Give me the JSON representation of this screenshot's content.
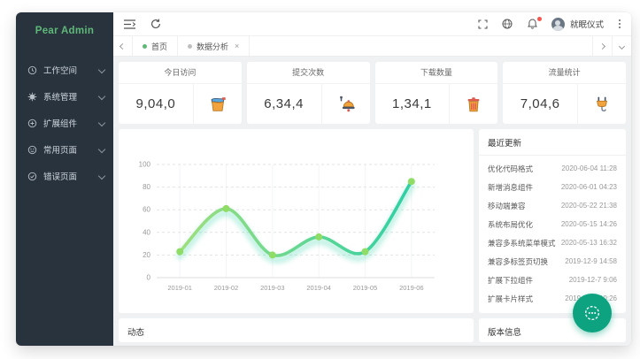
{
  "app": {
    "logo_text": "Pear Admin"
  },
  "sidebar": {
    "items": [
      {
        "label": "工作空间",
        "icon": "workspace-icon"
      },
      {
        "label": "系统管理",
        "icon": "system-icon"
      },
      {
        "label": "扩展组件",
        "icon": "extension-icon"
      },
      {
        "label": "常用页面",
        "icon": "pages-icon"
      },
      {
        "label": "错误页面",
        "icon": "error-icon"
      }
    ]
  },
  "topbar": {
    "username": "就眠仪式"
  },
  "tabbar": {
    "tabs": [
      {
        "label": "首页",
        "active": true,
        "closable": false
      },
      {
        "label": "数据分析",
        "active": false,
        "closable": true,
        "close_glyph": "×"
      }
    ]
  },
  "stats": {
    "cards": [
      {
        "title": "今日访问",
        "value": "9,04,0",
        "icon": "paint-bucket-icon"
      },
      {
        "title": "提交次数",
        "value": "6,34,4",
        "icon": "bell-icon"
      },
      {
        "title": "下载数量",
        "value": "1,34,1",
        "icon": "trash-icon"
      },
      {
        "title": "流量统计",
        "value": "7,04,6",
        "icon": "plug-icon"
      }
    ]
  },
  "updates": {
    "title": "最近更新",
    "items": [
      {
        "label": "优化代码格式",
        "date": "2020-06-04 11:28"
      },
      {
        "label": "新增消息组件",
        "date": "2020-06-01 04:23"
      },
      {
        "label": "移动端兼容",
        "date": "2020-05-22 21:38"
      },
      {
        "label": "系统布局优化",
        "date": "2020-05-15 14:26"
      },
      {
        "label": "兼容多系统菜单模式",
        "date": "2020-05-13 16:32"
      },
      {
        "label": "兼容多标签页切换",
        "date": "2019-12-9 14:58"
      },
      {
        "label": "扩展下拉组件",
        "date": "2019-12-7 9:06"
      },
      {
        "label": "扩展卡片样式",
        "date": "2019-12-1 10:26"
      }
    ]
  },
  "panels": {
    "activity_title": "动态",
    "version_title": "版本信息"
  },
  "chart_data": {
    "type": "line",
    "categories": [
      "2019-01",
      "2019-02",
      "2019-03",
      "2019-04",
      "2019-05",
      "2019-06"
    ],
    "values": [
      23,
      61,
      20,
      36,
      23,
      85
    ],
    "title": "",
    "xlabel": "",
    "ylabel": "",
    "ylim": [
      0,
      100
    ],
    "y_ticks": [
      0,
      20,
      40,
      60,
      80,
      100
    ],
    "grid": true,
    "smooth": true,
    "legend": "none",
    "line_gradient": [
      "#9FDF7D",
      "#2ED0A5"
    ],
    "point_color": "#8FDC66"
  },
  "colors": {
    "accent_green": "#5FB878",
    "sidebar_bg": "#28333E",
    "fab": "#0DA381",
    "notification_badge": "#F6564E"
  }
}
